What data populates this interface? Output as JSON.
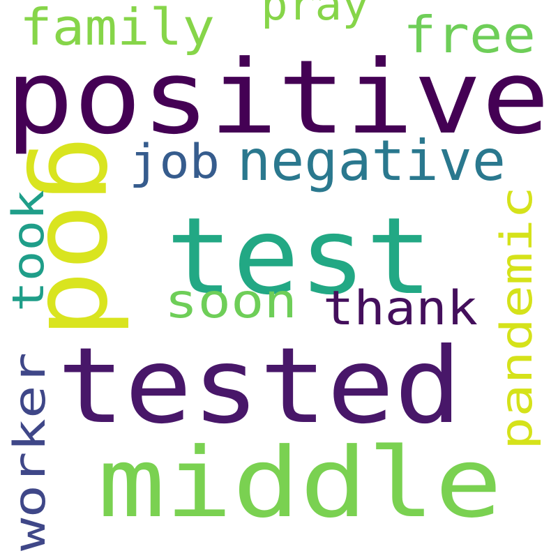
{
  "words": [
    {
      "text": "positive",
      "color": "#440154"
    },
    {
      "text": "test",
      "color": "#22a884"
    },
    {
      "text": "tested",
      "color": "#481769"
    },
    {
      "text": "god",
      "color": "#d9e41f"
    },
    {
      "text": "middle",
      "color": "#7ad151"
    },
    {
      "text": "negative",
      "color": "#2a788e"
    },
    {
      "text": "family",
      "color": "#86d549"
    },
    {
      "text": "pray",
      "color": "#86d549"
    },
    {
      "text": "free",
      "color": "#6ece58"
    },
    {
      "text": "job",
      "color": "#365c8d"
    },
    {
      "text": "soon",
      "color": "#6ece58"
    },
    {
      "text": "thank",
      "color": "#440f5c"
    },
    {
      "text": "took",
      "color": "#1f9e89"
    },
    {
      "text": "pandemic",
      "color": "#d5e21a"
    },
    {
      "text": "worker",
      "color": "#3f4788"
    }
  ]
}
